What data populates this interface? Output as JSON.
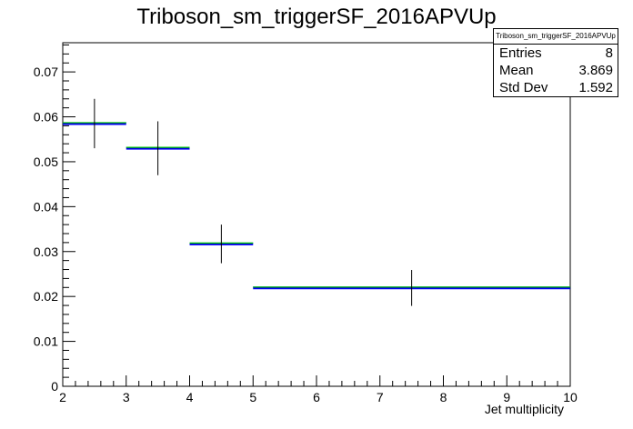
{
  "chart_data": {
    "type": "bar",
    "title": "Triboson_sm_triggerSF_2016APVUp",
    "xlabel": "Jet multiplicity",
    "ylabel": "",
    "xlim": [
      2,
      10
    ],
    "ylim": [
      0,
      0.0765
    ],
    "grid": false,
    "x_ticks": [
      "2",
      "3",
      "4",
      "5",
      "6",
      "7",
      "8",
      "9",
      "10"
    ],
    "y_ticks": [
      "0",
      "0.01",
      "0.02",
      "0.03",
      "0.04",
      "0.05",
      "0.06",
      "0.07"
    ],
    "bins": [
      {
        "low": 2,
        "high": 3,
        "center": 2.5,
        "value": 0.0585,
        "error": 0.0055
      },
      {
        "low": 3,
        "high": 4,
        "center": 3.5,
        "value": 0.053,
        "error": 0.006
      },
      {
        "low": 4,
        "high": 5,
        "center": 4.5,
        "value": 0.0317,
        "error": 0.0043
      },
      {
        "low": 5,
        "high": 10,
        "center": 7.5,
        "value": 0.0219,
        "error": 0.004
      }
    ],
    "colors": {
      "line": "#0000ff",
      "overlay": "#00cc00",
      "error": "#000000"
    },
    "stats": {
      "title": "Triboson_sm_triggerSF_2016APVUp",
      "rows": [
        {
          "label": "Entries",
          "value": "8"
        },
        {
          "label": "Mean",
          "value": "3.869"
        },
        {
          "label": "Std Dev",
          "value": "1.592"
        }
      ]
    }
  }
}
